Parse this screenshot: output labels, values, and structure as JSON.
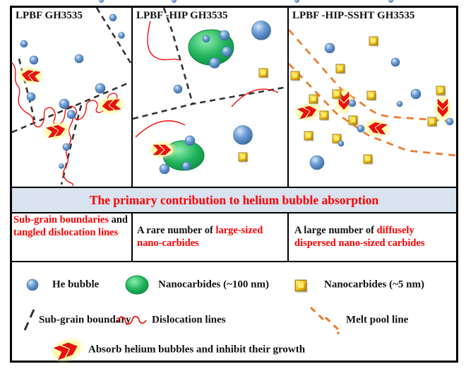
{
  "panels": [
    {
      "title": "LPBF GH3535"
    },
    {
      "title": "LPBF -HIP GH3535"
    },
    {
      "title": "LPBF -HIP-SSHT GH3535"
    }
  ],
  "banner": {
    "text": "The primary contribution to helium bubble absorption"
  },
  "claims": [
    {
      "segments": [
        {
          "text": "Sub-grain boundaries",
          "color": "#fe0000"
        },
        {
          "text": " and ",
          "color": "#111111"
        },
        {
          "text": "tangled dislocation lines",
          "color": "#fe0000"
        }
      ]
    },
    {
      "segments": [
        {
          "text": "A rare number of ",
          "color": "#111111"
        },
        {
          "text": "large-sized nano-carbides",
          "color": "#fe0000"
        }
      ]
    },
    {
      "segments": [
        {
          "text": "A large number of ",
          "color": "#111111"
        },
        {
          "text": "diffusely dispersed nano-sized carbides",
          "color": "#fe0000"
        }
      ]
    }
  ],
  "legend": {
    "row1": [
      {
        "icon": "he-bubble-icon",
        "label": "He bubble"
      },
      {
        "icon": "nanocarbide-large-icon",
        "label": "Nanocarbides (~100 nm)"
      },
      {
        "icon": "nanocarbide-small-icon",
        "label": "Nanocarbides (~5 nm)"
      }
    ],
    "row2": [
      {
        "icon": "sub-grain-boundary-icon",
        "label": "Sub-grain boundary"
      },
      {
        "icon": "dislocation-lines-icon",
        "label": "Dislocation lines"
      },
      {
        "icon": "melt-pool-line-icon",
        "label": "Melt pool line"
      }
    ],
    "row3": [
      {
        "icon": "absorb-chevron-icon",
        "label": "Absorb helium bubbles and inhibit their growth"
      }
    ]
  },
  "colors": {
    "accent_red": "#fe0000",
    "bubble_blue": "#5b8dc8",
    "carbide_green": "#21b45c",
    "carbide_gold": "#f2c410",
    "melt_pool_orange": "#ed7d31",
    "banner_bg": "#d9e2ef",
    "line_black": "#333333"
  }
}
